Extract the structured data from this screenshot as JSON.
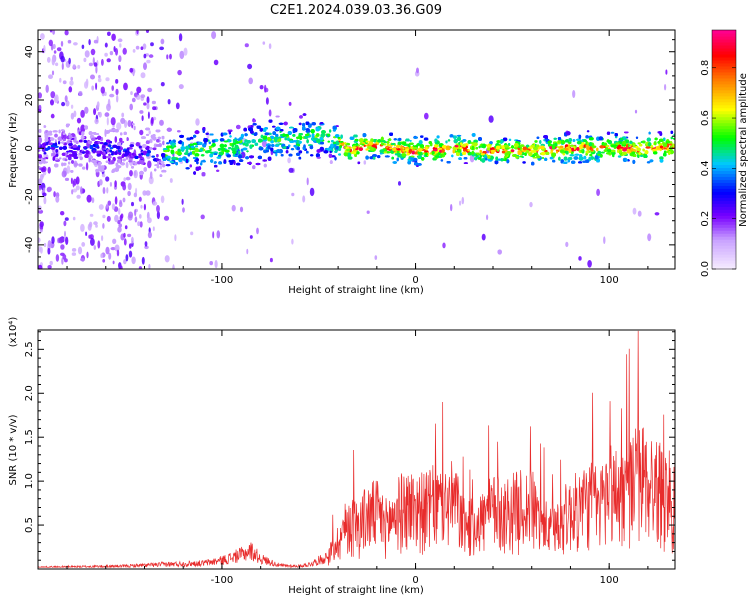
{
  "title": "C2E1.2024.039.03.36.G09",
  "chart_data": [
    {
      "type": "heatmap",
      "xlabel": "Height of straight line (km)",
      "ylabel": "Frequency (Hz)",
      "xlim": [
        -195,
        134
      ],
      "ylim": [
        -50,
        49
      ],
      "xticks": [
        -100,
        0,
        100
      ],
      "xtick_labels": [
        "-100",
        "0",
        "100"
      ],
      "yticks": [
        -40,
        -20,
        0,
        20,
        40
      ],
      "ytick_labels": [
        "-40",
        "-20",
        "0",
        "20",
        "40"
      ],
      "colorbar": {
        "label": "Normalized spectral amplitude",
        "range": [
          0,
          0.95
        ],
        "ticks": [
          0.0,
          0.2,
          0.4,
          0.6,
          0.8
        ],
        "tick_labels": [
          "0.0",
          "0.2",
          "0.4",
          "0.6",
          "0.8"
        ]
      },
      "ridge": {
        "x": [
          -195,
          -160,
          -140,
          -120,
          -100,
          -80,
          -60,
          -50,
          -40,
          -35,
          -20,
          0,
          20,
          40,
          60,
          80,
          100,
          120,
          134
        ],
        "y": [
          0,
          0,
          -3,
          -1,
          0,
          3,
          4,
          5,
          3,
          0,
          1,
          -1,
          0,
          -1,
          -1,
          0,
          0,
          0,
          1
        ]
      }
    },
    {
      "type": "line",
      "xlabel": "Height of straight line (km)",
      "ylabel": "SNR (10 * v/v)",
      "y_multiplier": "(x10⁴)",
      "xlim": [
        -195,
        134
      ],
      "ylim": [
        0,
        2.72
      ],
      "xticks": [
        -100,
        0,
        100
      ],
      "xtick_labels": [
        "-100",
        "0",
        "100"
      ],
      "yticks": [
        0.5,
        1.0,
        1.5,
        2.0,
        2.5
      ],
      "ytick_labels": [
        "0.5",
        "1.0",
        "1.5",
        "2.0",
        "2.5"
      ],
      "series": [
        {
          "color": "#e82c2c",
          "envelope": {
            "x": [
              -195,
              -150,
              -130,
              -110,
              -100,
              -90,
              -85,
              -80,
              -70,
              -60,
              -55,
              -45,
              -40,
              -35,
              -30,
              -25,
              -20,
              -15,
              -10,
              -5,
              0,
              5,
              10,
              15,
              20,
              25,
              30,
              35,
              40,
              45,
              50,
              55,
              60,
              65,
              70,
              75,
              80,
              85,
              90,
              95,
              100,
              105,
              110,
              115,
              120,
              125,
              130,
              134
            ],
            "y": [
              0.03,
              0.05,
              0.08,
              0.1,
              0.15,
              0.25,
              0.32,
              0.18,
              0.06,
              0.05,
              0.08,
              0.22,
              0.45,
              0.75,
              0.7,
              0.85,
              0.9,
              0.7,
              0.9,
              1.0,
              1.0,
              0.95,
              1.05,
              1.0,
              1.1,
              0.7,
              0.7,
              0.8,
              0.95,
              0.9,
              0.95,
              1.0,
              1.0,
              0.75,
              0.6,
              0.8,
              0.9,
              1.0,
              1.1,
              1.0,
              1.3,
              1.2,
              1.25,
              1.5,
              1.4,
              1.3,
              1.2,
              1.1
            ]
          }
        }
      ]
    }
  ]
}
